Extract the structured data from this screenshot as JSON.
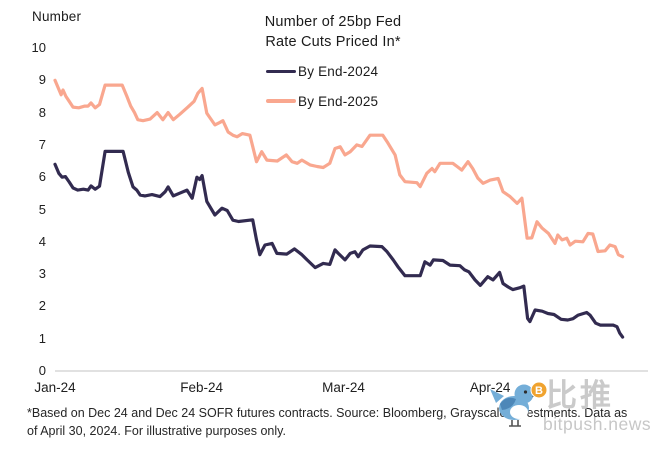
{
  "page": {
    "background": "#ffffff"
  },
  "chart_data": {
    "type": "line",
    "title_line1": "Number of 25bp Fed",
    "title_line2": "Rate Cuts Priced In*",
    "y_axis_title": "Number",
    "xlabel": "",
    "ylabel": "Number",
    "ylim": [
      0,
      10
    ],
    "y_ticks": [
      0,
      1,
      2,
      3,
      4,
      5,
      6,
      7,
      8,
      9,
      10
    ],
    "x_tick_labels": [
      "Jan-24",
      "Feb-24",
      "Mar-24",
      "Apr-24"
    ],
    "x_tick_days": [
      0,
      31,
      61,
      92
    ],
    "x_range_days": [
      0,
      120.5
    ],
    "x_unit": "days since Jan 1 2024 (data through Apr 30 2024)",
    "grid": "zero-baseline-only",
    "legend_position": "top-center",
    "axis_line_color": "#cfcfcf",
    "series": [
      {
        "name": "By End-2024",
        "color": "#322b50",
        "points": [
          [
            0,
            6.4
          ],
          [
            0.8,
            6.12
          ],
          [
            1.5,
            6.0
          ],
          [
            2.2,
            6.02
          ],
          [
            3,
            5.85
          ],
          [
            3.8,
            5.67
          ],
          [
            4.8,
            5.6
          ],
          [
            6,
            5.63
          ],
          [
            7,
            5.6
          ],
          [
            7.6,
            5.73
          ],
          [
            8.5,
            5.63
          ],
          [
            9.4,
            5.72
          ],
          [
            10.6,
            6.8
          ],
          [
            14.4,
            6.8
          ],
          [
            15.5,
            6.15
          ],
          [
            16.5,
            5.7
          ],
          [
            17.3,
            5.6
          ],
          [
            18,
            5.45
          ],
          [
            19,
            5.42
          ],
          [
            20.5,
            5.46
          ],
          [
            22.2,
            5.4
          ],
          [
            23.3,
            5.55
          ],
          [
            23.9,
            5.7
          ],
          [
            25,
            5.42
          ],
          [
            26.3,
            5.5
          ],
          [
            27.9,
            5.6
          ],
          [
            29,
            5.35
          ],
          [
            30,
            6.0
          ],
          [
            30.6,
            5.93
          ],
          [
            31.1,
            6.05
          ],
          [
            32.1,
            5.25
          ],
          [
            33.8,
            4.83
          ],
          [
            35.3,
            5.04
          ],
          [
            36.4,
            4.97
          ],
          [
            37.6,
            4.67
          ],
          [
            38.8,
            4.63
          ],
          [
            41.8,
            4.68
          ],
          [
            42.6,
            4.06
          ],
          [
            43.3,
            3.6
          ],
          [
            44.4,
            3.9
          ],
          [
            45.9,
            3.95
          ],
          [
            46.9,
            3.64
          ],
          [
            49,
            3.62
          ],
          [
            50.6,
            3.78
          ],
          [
            52.2,
            3.6
          ],
          [
            53.3,
            3.44
          ],
          [
            55,
            3.2
          ],
          [
            56.7,
            3.33
          ],
          [
            58.1,
            3.3
          ],
          [
            59.2,
            3.75
          ],
          [
            59.9,
            3.64
          ],
          [
            61.3,
            3.44
          ],
          [
            62.4,
            3.64
          ],
          [
            63.4,
            3.69
          ],
          [
            64.1,
            3.54
          ],
          [
            65.1,
            3.75
          ],
          [
            66.6,
            3.87
          ],
          [
            69.1,
            3.85
          ],
          [
            70.2,
            3.69
          ],
          [
            71.5,
            3.44
          ],
          [
            72.5,
            3.23
          ],
          [
            74,
            2.95
          ],
          [
            77.2,
            2.95
          ],
          [
            78.2,
            3.38
          ],
          [
            79.3,
            3.28
          ],
          [
            80,
            3.44
          ],
          [
            82,
            3.42
          ],
          [
            83.5,
            3.28
          ],
          [
            85.6,
            3.26
          ],
          [
            86.6,
            3.13
          ],
          [
            87.5,
            3.07
          ],
          [
            88.8,
            2.82
          ],
          [
            89.9,
            2.65
          ],
          [
            91.5,
            2.92
          ],
          [
            92.6,
            2.82
          ],
          [
            94,
            3.05
          ],
          [
            94.7,
            2.71
          ],
          [
            95.8,
            2.6
          ],
          [
            96.8,
            2.52
          ],
          [
            98.3,
            2.58
          ],
          [
            99.1,
            2.63
          ],
          [
            99.9,
            1.63
          ],
          [
            100.4,
            1.53
          ],
          [
            101.5,
            1.89
          ],
          [
            103,
            1.85
          ],
          [
            104.2,
            1.78
          ],
          [
            105.5,
            1.75
          ],
          [
            107,
            1.6
          ],
          [
            108.4,
            1.58
          ],
          [
            109.5,
            1.62
          ],
          [
            110.6,
            1.73
          ],
          [
            112.4,
            1.81
          ],
          [
            113.1,
            1.73
          ],
          [
            114.3,
            1.48
          ],
          [
            115.3,
            1.42
          ],
          [
            118,
            1.42
          ],
          [
            118.8,
            1.37
          ],
          [
            119.4,
            1.17
          ],
          [
            120,
            1.05
          ]
        ]
      },
      {
        "name": "By End-2025",
        "color": "#f9a78f",
        "points": [
          [
            0,
            9.0
          ],
          [
            1.3,
            8.55
          ],
          [
            1.7,
            8.7
          ],
          [
            2.3,
            8.5
          ],
          [
            3,
            8.35
          ],
          [
            3.8,
            8.17
          ],
          [
            5,
            8.15
          ],
          [
            6.3,
            8.2
          ],
          [
            7,
            8.2
          ],
          [
            7.6,
            8.3
          ],
          [
            8.5,
            8.15
          ],
          [
            9.4,
            8.25
          ],
          [
            10.6,
            8.85
          ],
          [
            14.2,
            8.85
          ],
          [
            15.2,
            8.5
          ],
          [
            16,
            8.2
          ],
          [
            16.8,
            8.0
          ],
          [
            17.5,
            7.78
          ],
          [
            18.6,
            7.75
          ],
          [
            20.1,
            7.8
          ],
          [
            21.6,
            8.0
          ],
          [
            22.8,
            7.78
          ],
          [
            23.9,
            8.0
          ],
          [
            25,
            7.78
          ],
          [
            26.4,
            7.95
          ],
          [
            28.1,
            8.17
          ],
          [
            29.4,
            8.35
          ],
          [
            30.2,
            8.6
          ],
          [
            31.1,
            8.75
          ],
          [
            32.1,
            7.98
          ],
          [
            32.8,
            7.83
          ],
          [
            33.8,
            7.62
          ],
          [
            34.9,
            7.7
          ],
          [
            35.5,
            7.75
          ],
          [
            36.6,
            7.4
          ],
          [
            37.6,
            7.3
          ],
          [
            38.5,
            7.25
          ],
          [
            39.6,
            7.35
          ],
          [
            41.2,
            7.3
          ],
          [
            42.6,
            6.48
          ],
          [
            43.7,
            6.79
          ],
          [
            44.8,
            6.53
          ],
          [
            47,
            6.5
          ],
          [
            48.9,
            6.69
          ],
          [
            50.1,
            6.48
          ],
          [
            51.2,
            6.43
          ],
          [
            52.2,
            6.53
          ],
          [
            53.9,
            6.38
          ],
          [
            55.4,
            6.33
          ],
          [
            56.7,
            6.3
          ],
          [
            58.1,
            6.43
          ],
          [
            59.2,
            6.89
          ],
          [
            60.3,
            6.94
          ],
          [
            61.3,
            6.69
          ],
          [
            62.4,
            6.79
          ],
          [
            63.8,
            7.0
          ],
          [
            64.9,
            6.95
          ],
          [
            66.6,
            7.3
          ],
          [
            69.3,
            7.3
          ],
          [
            70.2,
            7.1
          ],
          [
            71.9,
            6.69
          ],
          [
            72.9,
            6.07
          ],
          [
            74,
            5.86
          ],
          [
            76.5,
            5.83
          ],
          [
            77.2,
            5.71
          ],
          [
            78.6,
            6.12
          ],
          [
            79.7,
            6.27
          ],
          [
            80.3,
            6.17
          ],
          [
            81.4,
            6.43
          ],
          [
            84.1,
            6.43
          ],
          [
            85,
            6.33
          ],
          [
            86,
            6.22
          ],
          [
            87.3,
            6.48
          ],
          [
            88.3,
            6.27
          ],
          [
            89.4,
            5.97
          ],
          [
            90.5,
            5.81
          ],
          [
            92,
            5.91
          ],
          [
            93.7,
            5.96
          ],
          [
            94.7,
            5.55
          ],
          [
            96.2,
            5.4
          ],
          [
            97.7,
            5.19
          ],
          [
            98.7,
            5.35
          ],
          [
            99.8,
            4.11
          ],
          [
            100.8,
            4.12
          ],
          [
            101.9,
            4.62
          ],
          [
            103,
            4.42
          ],
          [
            104.3,
            4.26
          ],
          [
            105.7,
            3.95
          ],
          [
            106.3,
            4.21
          ],
          [
            107.2,
            4.06
          ],
          [
            108.2,
            4.11
          ],
          [
            108.9,
            3.9
          ],
          [
            110,
            4.02
          ],
          [
            111.6,
            4.0
          ],
          [
            112.7,
            4.26
          ],
          [
            113.7,
            4.24
          ],
          [
            114.8,
            3.7
          ],
          [
            116.3,
            3.72
          ],
          [
            117.3,
            3.9
          ],
          [
            118.4,
            3.85
          ],
          [
            119.1,
            3.6
          ],
          [
            120,
            3.54
          ]
        ]
      }
    ]
  },
  "footnote": {
    "line1": "*Based on Dec 24 and Dec 24 SOFR futures contracts. Source: Bloomberg, Grayscale Investments. Data as",
    "line2": "of April 30, 2024. For illustrative purposes only."
  },
  "watermark": {
    "brand_cn": "比推",
    "brand_domain": "bitpush.news",
    "bird_color": "#74aed8",
    "wing_color": "#4d87b8",
    "bitcoin_color": "#f0a32f",
    "bitcoin_symbol": "B"
  }
}
